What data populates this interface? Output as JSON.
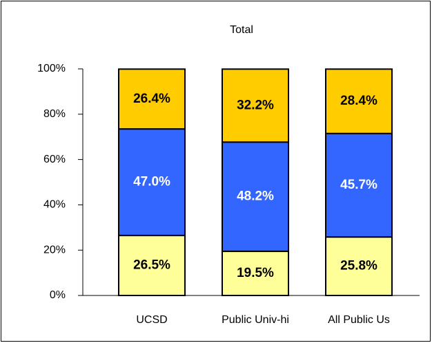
{
  "chart_data": {
    "type": "stacked_bar",
    "title": "Total",
    "categories": [
      "UCSD",
      "Public Univ-hi",
      "All Public Us"
    ],
    "series": [
      {
        "color": "#ffff99",
        "label_color": "#000000",
        "values": [
          26.5,
          19.5,
          25.8
        ],
        "value_labels": [
          "26.5%",
          "19.5%",
          "25.8%"
        ]
      },
      {
        "color": "#3366ff",
        "label_color": "#ffffff",
        "values": [
          47.0,
          48.2,
          45.7
        ],
        "value_labels": [
          "47.0%",
          "48.2%",
          "45.7%"
        ]
      },
      {
        "color": "#ffcc00",
        "label_color": "#000000",
        "values": [
          26.4,
          32.2,
          28.4
        ],
        "value_labels": [
          "26.4%",
          "32.2%",
          "28.4%"
        ]
      }
    ],
    "ylim": [
      0,
      100
    ],
    "yticks": [
      {
        "value": 0,
        "label": "0%"
      },
      {
        "value": 20,
        "label": "20%"
      },
      {
        "value": 40,
        "label": "40%"
      },
      {
        "value": 60,
        "label": "60%"
      },
      {
        "value": 80,
        "label": "80%"
      },
      {
        "value": 100,
        "label": "100%"
      }
    ]
  }
}
